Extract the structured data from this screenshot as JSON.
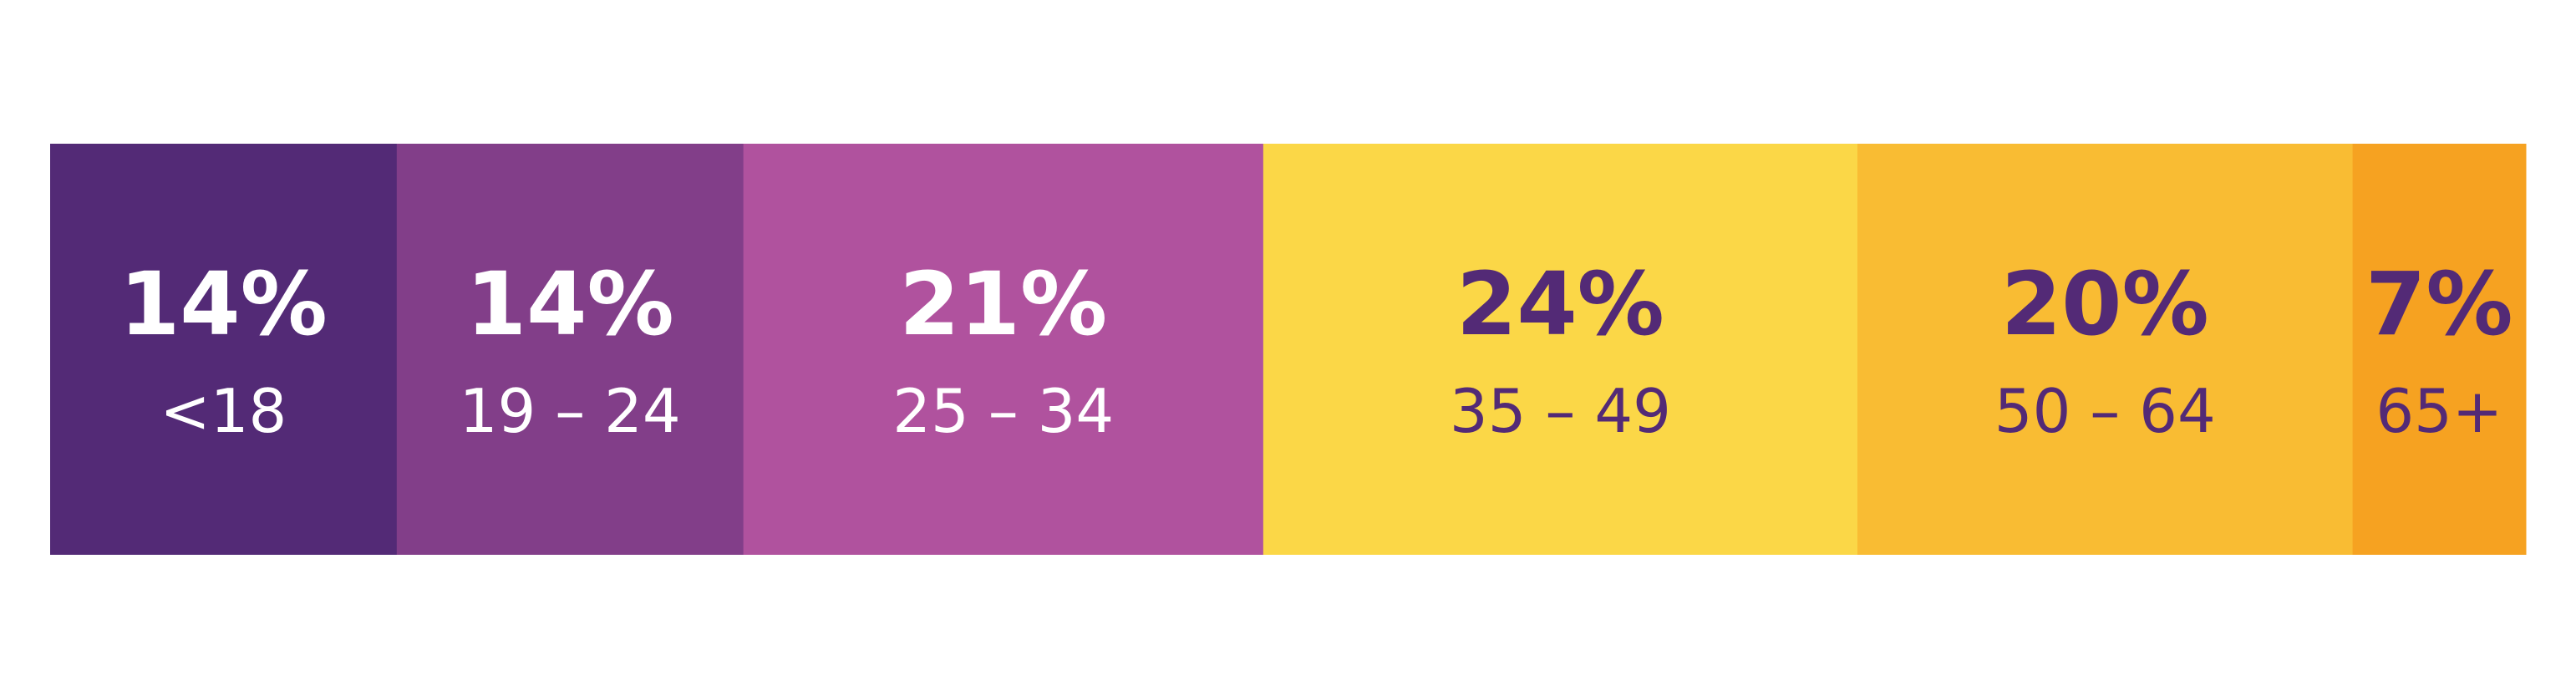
{
  "chart_data": {
    "type": "bar",
    "stacked": true,
    "orientation": "horizontal",
    "unit": "%",
    "categories": [
      "<18",
      "19 – 24",
      "25 – 34",
      "35 – 49",
      "50 – 64",
      "65+"
    ],
    "values": [
      14,
      14,
      21,
      24,
      20,
      7
    ],
    "value_labels": [
      "14%",
      "14%",
      "21%",
      "24%",
      "20%",
      "7%"
    ],
    "colors": [
      "#532a76",
      "#823e89",
      "#b0529e",
      "#fbd747",
      "#f9bc33",
      "#f6a221"
    ],
    "label_colors": [
      "#ffffff",
      "#ffffff",
      "#ffffff",
      "#532a76",
      "#532a76",
      "#532a76"
    ],
    "title": "",
    "xlabel": "",
    "ylabel": "",
    "legend": "none",
    "grid": false
  }
}
